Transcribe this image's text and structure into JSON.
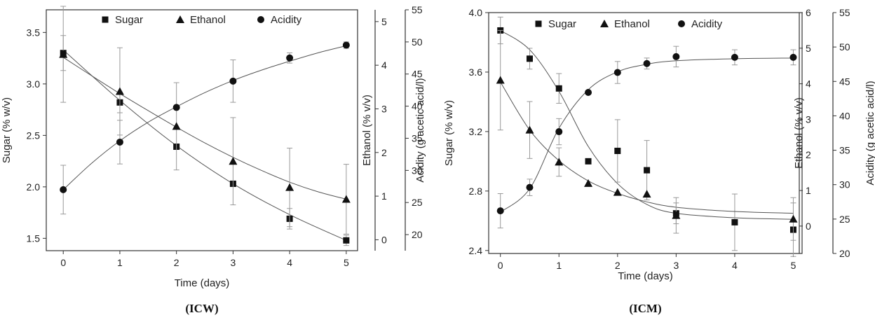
{
  "chart_data": [
    {
      "type": "scatter",
      "panel_label": "(ICW)",
      "xlabel": "Time (days)",
      "xlim": [
        -0.3,
        5.2
      ],
      "x_ticks": [
        0,
        1,
        2,
        3,
        4,
        5
      ],
      "axes": [
        {
          "id": "sugar",
          "label": "Sugar (% w/v)",
          "lim": [
            1.38,
            3.72
          ],
          "ticks": [
            1.5,
            2.0,
            2.5,
            3.0,
            3.5
          ],
          "tick_labels": [
            "1.5",
            "2.0",
            "2.5",
            "3.0",
            "3.5"
          ]
        },
        {
          "id": "ethanol",
          "label": "Ethanol (% v/v)",
          "lim": [
            -0.25,
            5.27
          ],
          "ticks": [
            0,
            1,
            2,
            3,
            4,
            5
          ],
          "tick_labels": [
            "0",
            "1",
            "2",
            "3",
            "4",
            "5"
          ]
        },
        {
          "id": "acidity",
          "label": "Acidity (g acetic acid/l)",
          "lim": [
            17.5,
            55
          ],
          "ticks": [
            20,
            25,
            30,
            35,
            40,
            45,
            50,
            55
          ],
          "tick_labels": [
            "20",
            "25",
            "30",
            "35",
            "40",
            "45",
            "50",
            "55"
          ]
        }
      ],
      "series": [
        {
          "name": "Sugar",
          "marker": "square",
          "axis": "sugar",
          "x": [
            0,
            1,
            2,
            3,
            4,
            5
          ],
          "y": [
            3.3,
            2.82,
            2.39,
            2.03,
            1.69,
            1.48
          ],
          "err": [
            0.17,
            0.1,
            0.0,
            0.0,
            0.1,
            0.05
          ],
          "fit_x": [
            0,
            1,
            2,
            3,
            4,
            5
          ],
          "fit_y": [
            3.33,
            2.84,
            2.4,
            2.03,
            1.73,
            1.48
          ]
        },
        {
          "name": "Ethanol",
          "marker": "triangle",
          "axis": "ethanol",
          "x": [
            0,
            1,
            2,
            3,
            4,
            5
          ],
          "y": [
            4.25,
            3.4,
            2.6,
            1.8,
            1.2,
            0.93
          ],
          "err": [
            1.1,
            1.0,
            1.0,
            1.0,
            0.9,
            0.8
          ],
          "fit_x": [
            0,
            0.5,
            1,
            1.5,
            2,
            2.5,
            3,
            3.5,
            4,
            4.5,
            5
          ],
          "fit_y": [
            4.18,
            3.76,
            3.35,
            2.96,
            2.58,
            2.22,
            1.89,
            1.59,
            1.32,
            1.1,
            0.93
          ]
        },
        {
          "name": "Acidity",
          "marker": "circle",
          "axis": "acidity",
          "x": [
            0,
            1,
            2,
            3,
            4,
            5
          ],
          "y": [
            27.0,
            34.4,
            39.8,
            43.9,
            47.5,
            49.5
          ],
          "err": [
            3.8,
            3.4,
            0.0,
            3.3,
            0.8,
            0.5
          ],
          "fit_x": [
            0,
            0.5,
            1,
            1.5,
            2,
            2.5,
            3,
            3.5,
            4,
            4.5,
            5
          ],
          "fit_y": [
            27.0,
            31.1,
            34.6,
            37.5,
            39.9,
            42.1,
            44.0,
            45.6,
            47.0,
            48.3,
            49.4
          ]
        }
      ],
      "legend": {
        "placement": "top",
        "entries": [
          "Sugar",
          "Ethanol",
          "Acidity"
        ]
      }
    },
    {
      "type": "scatter",
      "panel_label": "(ICM)",
      "xlabel": "Time (days)",
      "xlim": [
        -0.2,
        5.15
      ],
      "x_ticks": [
        0,
        1,
        2,
        3,
        4,
        5
      ],
      "axes": [
        {
          "id": "sugar",
          "label": "Sugar (% w/v)",
          "lim": [
            2.38,
            4.0
          ],
          "ticks": [
            2.4,
            2.8,
            3.2,
            3.6,
            4.0
          ],
          "tick_labels": [
            "2.4",
            "2.8",
            "3.2",
            "3.6",
            "4.0"
          ]
        },
        {
          "id": "ethanol",
          "label": "Ethanol (% v/v)",
          "lim": [
            -0.77,
            6.0
          ],
          "ticks": [
            0,
            1,
            2,
            3,
            4,
            5,
            6
          ],
          "tick_labels": [
            "0",
            "1",
            "2",
            "3",
            "4",
            "5",
            "6"
          ]
        },
        {
          "id": "acidity",
          "label": "Acidity (g acetic acid/l)",
          "lim": [
            20,
            55
          ],
          "ticks": [
            20,
            25,
            30,
            35,
            40,
            45,
            50,
            55
          ],
          "tick_labels": [
            "20",
            "25",
            "30",
            "35",
            "40",
            "45",
            "50",
            "55"
          ]
        }
      ],
      "series": [
        {
          "name": "Sugar",
          "marker": "square",
          "axis": "sugar",
          "x": [
            0,
            0.5,
            1,
            1.5,
            2,
            2.5,
            3,
            4,
            5
          ],
          "y": [
            3.88,
            3.69,
            3.49,
            3.0,
            3.07,
            2.94,
            2.65,
            2.59,
            2.54
          ],
          "err": [
            0.09,
            0.07,
            0.1,
            0.0,
            0.21,
            0.2,
            0.07,
            0.19,
            0.18
          ],
          "fit_x": [
            0,
            0.5,
            1,
            1.5,
            2,
            2.5,
            3,
            4,
            5
          ],
          "fit_y": [
            3.88,
            3.75,
            3.47,
            3.1,
            2.85,
            2.71,
            2.65,
            2.62,
            2.61
          ]
        },
        {
          "name": "Ethanol",
          "marker": "triangle",
          "axis": "ethanol",
          "x": [
            0,
            0.5,
            1,
            1.5,
            2,
            2.5,
            3,
            5
          ],
          "y": [
            4.1,
            2.7,
            1.8,
            1.2,
            0.95,
            0.9,
            0.3,
            0.2
          ],
          "err": [
            1.4,
            0.8,
            0.4,
            0.0,
            0.0,
            0.0,
            0.5,
            0.6
          ],
          "fit_x": [
            0,
            0.5,
            1,
            1.5,
            2,
            2.5,
            3,
            4,
            5
          ],
          "fit_y": [
            4.05,
            2.7,
            1.84,
            1.27,
            0.92,
            0.68,
            0.53,
            0.41,
            0.36
          ]
        },
        {
          "name": "Acidity",
          "marker": "circle",
          "axis": "acidity",
          "x": [
            0,
            0.5,
            1,
            1.5,
            2,
            2.5,
            3,
            4,
            5
          ],
          "y": [
            26.2,
            29.6,
            37.7,
            43.4,
            46.3,
            47.6,
            48.6,
            48.5,
            48.5
          ],
          "err": [
            2.5,
            1.2,
            1.9,
            0.0,
            1.6,
            0.8,
            1.5,
            1.1,
            1.1
          ],
          "fit_x": [
            0,
            0.5,
            1,
            1.5,
            2,
            2.5,
            3,
            4,
            5
          ],
          "fit_y": [
            26.0,
            29.4,
            38.2,
            43.8,
            46.4,
            47.5,
            48.0,
            48.3,
            48.4
          ]
        }
      ],
      "legend": {
        "placement": "top",
        "entries": [
          "Sugar",
          "Ethanol",
          "Acidity"
        ]
      }
    }
  ]
}
